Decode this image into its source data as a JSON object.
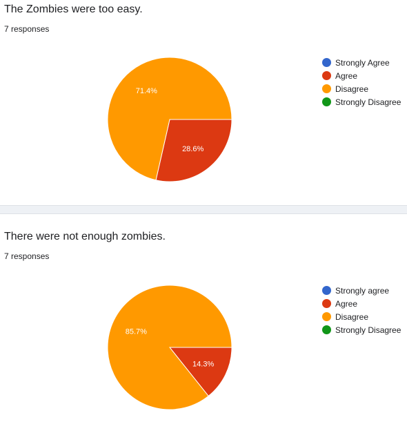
{
  "colors": {
    "strongly_agree": "#3366cc",
    "agree": "#dc3912",
    "disagree": "#ff9900",
    "strongly_disagree": "#109618"
  },
  "chart_data": [
    {
      "type": "pie",
      "title": "The Zombies were too easy.",
      "responses": "7 responses",
      "legend_position": "right",
      "slices": [
        {
          "label": "Strongly Agree",
          "value": 0,
          "percent_label": "",
          "color": "#3366cc"
        },
        {
          "label": "Agree",
          "value": 2,
          "percent_label": "28.6%",
          "color": "#dc3912"
        },
        {
          "label": "Disagree",
          "value": 5,
          "percent_label": "71.4%",
          "color": "#ff9900"
        },
        {
          "label": "Strongly Disagree",
          "value": 0,
          "percent_label": "",
          "color": "#109618"
        }
      ]
    },
    {
      "type": "pie",
      "title": "There were not enough zombies.",
      "responses": "7 responses",
      "legend_position": "right",
      "slices": [
        {
          "label": "Strongly agree",
          "value": 0,
          "percent_label": "",
          "color": "#3366cc"
        },
        {
          "label": "Agree",
          "value": 1,
          "percent_label": "14.3%",
          "color": "#dc3912"
        },
        {
          "label": "Disagree",
          "value": 6,
          "percent_label": "85.7%",
          "color": "#ff9900"
        },
        {
          "label": "Strongly Disagree",
          "value": 0,
          "percent_label": "",
          "color": "#109618"
        }
      ]
    }
  ]
}
